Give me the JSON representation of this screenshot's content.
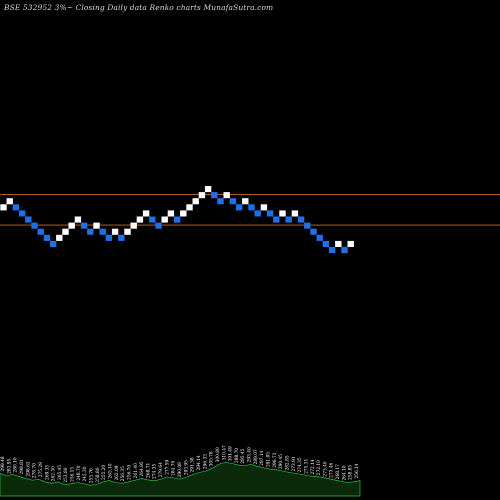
{
  "header": {
    "caption": "BSE 532952  3%~  Closing Daily data  Renko  charts MunafaSutra.com"
  },
  "colors": {
    "background": "#000000",
    "up_brick": "#ffffff",
    "down_brick": "#1f6fe8",
    "reference_line": "#c86a2a",
    "volume_fill": "#0a2a0a",
    "volume_edge": "#2fbf3f",
    "volume_label": "#ffffff"
  },
  "chart_data": {
    "type": "renko",
    "title": "BSE 532952  3%~  Closing Daily data  Renko  charts MunafaSutra.com",
    "brick_size_percent": 3,
    "bricks": [
      {
        "level": 28,
        "dir": "up"
      },
      {
        "level": 29,
        "dir": "up"
      },
      {
        "level": 28,
        "dir": "down"
      },
      {
        "level": 27,
        "dir": "down"
      },
      {
        "level": 26,
        "dir": "down"
      },
      {
        "level": 25,
        "dir": "down"
      },
      {
        "level": 24,
        "dir": "down"
      },
      {
        "level": 23,
        "dir": "down"
      },
      {
        "level": 22,
        "dir": "down"
      },
      {
        "level": 23,
        "dir": "up"
      },
      {
        "level": 24,
        "dir": "up"
      },
      {
        "level": 25,
        "dir": "up"
      },
      {
        "level": 26,
        "dir": "up"
      },
      {
        "level": 25,
        "dir": "down"
      },
      {
        "level": 24,
        "dir": "down"
      },
      {
        "level": 25,
        "dir": "up"
      },
      {
        "level": 24,
        "dir": "down"
      },
      {
        "level": 23,
        "dir": "down"
      },
      {
        "level": 24,
        "dir": "up"
      },
      {
        "level": 23,
        "dir": "down"
      },
      {
        "level": 24,
        "dir": "up"
      },
      {
        "level": 25,
        "dir": "up"
      },
      {
        "level": 26,
        "dir": "up"
      },
      {
        "level": 27,
        "dir": "up"
      },
      {
        "level": 26,
        "dir": "down"
      },
      {
        "level": 25,
        "dir": "down"
      },
      {
        "level": 26,
        "dir": "up"
      },
      {
        "level": 27,
        "dir": "up"
      },
      {
        "level": 26,
        "dir": "down"
      },
      {
        "level": 27,
        "dir": "up"
      },
      {
        "level": 28,
        "dir": "up"
      },
      {
        "level": 29,
        "dir": "up"
      },
      {
        "level": 30,
        "dir": "up"
      },
      {
        "level": 31,
        "dir": "up"
      },
      {
        "level": 30,
        "dir": "down"
      },
      {
        "level": 29,
        "dir": "down"
      },
      {
        "level": 30,
        "dir": "up"
      },
      {
        "level": 29,
        "dir": "down"
      },
      {
        "level": 28,
        "dir": "down"
      },
      {
        "level": 29,
        "dir": "up"
      },
      {
        "level": 28,
        "dir": "down"
      },
      {
        "level": 27,
        "dir": "down"
      },
      {
        "level": 28,
        "dir": "up"
      },
      {
        "level": 27,
        "dir": "down"
      },
      {
        "level": 26,
        "dir": "down"
      },
      {
        "level": 27,
        "dir": "up"
      },
      {
        "level": 26,
        "dir": "down"
      },
      {
        "level": 27,
        "dir": "up"
      },
      {
        "level": 26,
        "dir": "down"
      },
      {
        "level": 25,
        "dir": "down"
      },
      {
        "level": 24,
        "dir": "down"
      },
      {
        "level": 23,
        "dir": "down"
      },
      {
        "level": 22,
        "dir": "down"
      },
      {
        "level": 21,
        "dir": "down"
      },
      {
        "level": 22,
        "dir": "up"
      },
      {
        "level": 21,
        "dir": "down"
      },
      {
        "level": 22,
        "dir": "up"
      }
    ],
    "reference_lines": [
      {
        "level": 30.1
      },
      {
        "level": 25.1
      }
    ],
    "volume_labels": [
      "299.48",
      "283.95",
      "280.10",
      "299.81",
      "298.61",
      "278.70",
      "275.29",
      "269.35",
      "262.30",
      "265.45",
      "253.80",
      "256.15",
      "248.70",
      "245.30",
      "253.76",
      "258.80",
      "255.20",
      "265.10",
      "262.09",
      "256.35",
      "256.70",
      "261.40",
      "264.95",
      "268.71",
      "274.35",
      "279.64",
      "277.59",
      "284.70",
      "290.08",
      "293.95",
      "291.38",
      "294.14",
      "296.33",
      "305.78",
      "300.80",
      "310.47",
      "301.49",
      "298.70",
      "295.45",
      "293.40",
      "289.07",
      "297.14",
      "291.85",
      "296.73",
      "290.45",
      "282.85",
      "273.91",
      "274.35",
      "275.31",
      "272.14",
      "272.10",
      "273.40",
      "273.46",
      "268.17",
      "264.10",
      "258.85",
      "256.14"
    ],
    "volume_levels": [
      0.55,
      0.48,
      0.52,
      0.46,
      0.4,
      0.35,
      0.38,
      0.3,
      0.26,
      0.3,
      0.22,
      0.24,
      0.28,
      0.25,
      0.2,
      0.22,
      0.3,
      0.34,
      0.28,
      0.26,
      0.3,
      0.35,
      0.4,
      0.36,
      0.33,
      0.38,
      0.45,
      0.42,
      0.38,
      0.44,
      0.52,
      0.58,
      0.62,
      0.7,
      0.82,
      0.88,
      0.85,
      0.8,
      0.78,
      0.82,
      0.76,
      0.72,
      0.68,
      0.66,
      0.62,
      0.58,
      0.55,
      0.52,
      0.48,
      0.46,
      0.44,
      0.4,
      0.36,
      0.32,
      0.28,
      0.3,
      0.34
    ]
  }
}
